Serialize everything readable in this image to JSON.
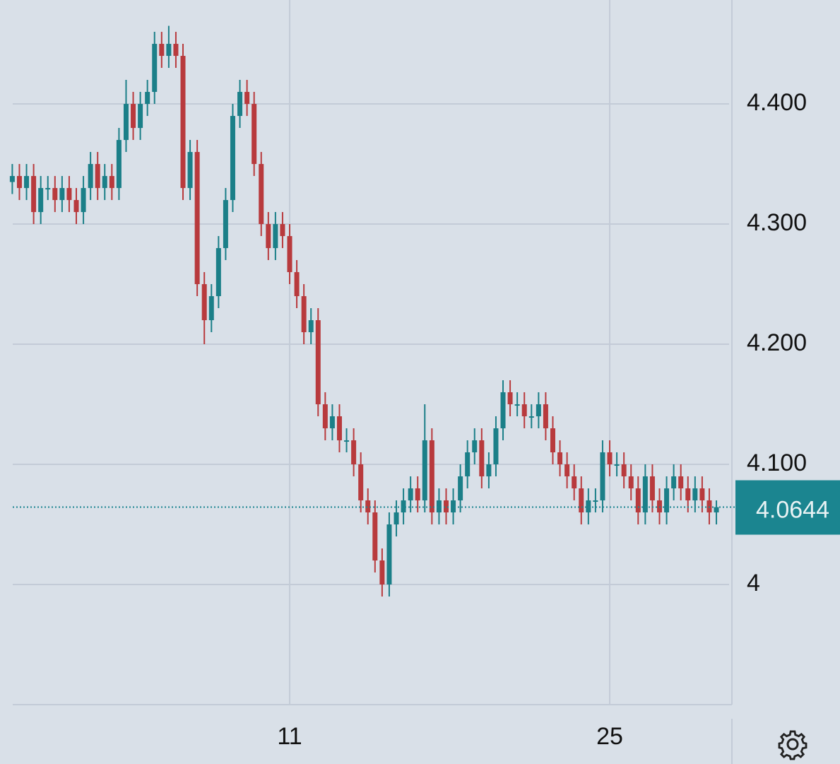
{
  "chart_data": {
    "type": "candlestick",
    "categories": [
      null,
      null,
      null,
      null,
      null,
      null,
      null,
      null,
      null,
      null,
      null,
      null,
      null,
      null,
      null,
      null,
      null,
      null,
      null,
      null,
      null,
      null,
      null,
      null,
      null,
      null,
      null,
      null,
      null,
      null,
      null,
      null,
      null,
      null,
      null,
      null,
      null,
      null,
      null,
      "11",
      null,
      null,
      null,
      null,
      null,
      null,
      null,
      null,
      null,
      null,
      null,
      null,
      null,
      null,
      null,
      null,
      null,
      null,
      null,
      null,
      null,
      null,
      null,
      null,
      null,
      null,
      null,
      null,
      null,
      null,
      null,
      null,
      null,
      null,
      null,
      null,
      null,
      null,
      null,
      null,
      null,
      null,
      null,
      null,
      "25",
      null,
      null,
      null,
      null,
      null,
      null,
      null,
      null,
      null,
      null,
      null,
      null,
      null,
      null,
      null
    ],
    "open": [
      4.335,
      4.34,
      4.33,
      4.34,
      4.31,
      4.33,
      4.33,
      4.32,
      4.33,
      4.32,
      4.31,
      4.33,
      4.35,
      4.33,
      4.34,
      4.33,
      4.37,
      4.4,
      4.38,
      4.4,
      4.41,
      4.45,
      4.44,
      4.45,
      4.44,
      4.33,
      4.36,
      4.25,
      4.22,
      4.24,
      4.28,
      4.32,
      4.39,
      4.41,
      4.4,
      4.35,
      4.3,
      4.28,
      4.3,
      4.29,
      4.26,
      4.24,
      4.21,
      4.22,
      4.15,
      4.13,
      4.14,
      4.12,
      4.12,
      4.1,
      4.07,
      4.06,
      4.02,
      4.0,
      4.05,
      4.06,
      4.07,
      4.08,
      4.07,
      4.12,
      4.06,
      4.07,
      4.06,
      4.07,
      4.09,
      4.11,
      4.12,
      4.09,
      4.1,
      4.13,
      4.16,
      4.15,
      4.15,
      4.14,
      4.14,
      4.15,
      4.13,
      4.11,
      4.1,
      4.09,
      4.08,
      4.06,
      4.07,
      4.07,
      4.11,
      4.1,
      4.1,
      4.09,
      4.08,
      4.06,
      4.09,
      4.07,
      4.06,
      4.08,
      4.09,
      4.08,
      4.07,
      4.08,
      4.07,
      4.06
    ],
    "high": [
      4.35,
      4.35,
      4.35,
      4.35,
      4.34,
      4.34,
      4.34,
      4.34,
      4.34,
      4.33,
      4.34,
      4.36,
      4.36,
      4.35,
      4.35,
      4.38,
      4.42,
      4.41,
      4.41,
      4.42,
      4.46,
      4.46,
      4.465,
      4.46,
      4.45,
      4.37,
      4.37,
      4.26,
      4.25,
      4.29,
      4.33,
      4.4,
      4.42,
      4.42,
      4.41,
      4.36,
      4.31,
      4.31,
      4.31,
      4.3,
      4.27,
      4.25,
      4.23,
      4.23,
      4.16,
      4.15,
      4.15,
      4.13,
      4.13,
      4.11,
      4.08,
      4.07,
      4.03,
      4.06,
      4.07,
      4.08,
      4.09,
      4.09,
      4.15,
      4.13,
      4.08,
      4.08,
      4.08,
      4.1,
      4.12,
      4.13,
      4.13,
      4.11,
      4.14,
      4.17,
      4.17,
      4.16,
      4.16,
      4.15,
      4.16,
      4.16,
      4.14,
      4.12,
      4.11,
      4.1,
      4.09,
      4.08,
      4.08,
      4.12,
      4.12,
      4.11,
      4.11,
      4.1,
      4.09,
      4.1,
      4.1,
      4.08,
      4.09,
      4.1,
      4.1,
      4.09,
      4.09,
      4.09,
      4.08,
      4.07
    ],
    "low": [
      4.325,
      4.32,
      4.32,
      4.3,
      4.3,
      4.32,
      4.31,
      4.31,
      4.31,
      4.3,
      4.3,
      4.32,
      4.32,
      4.32,
      4.32,
      4.32,
      4.36,
      4.37,
      4.37,
      4.39,
      4.4,
      4.43,
      4.43,
      4.43,
      4.32,
      4.32,
      4.24,
      4.2,
      4.21,
      4.23,
      4.27,
      4.31,
      4.38,
      4.39,
      4.34,
      4.29,
      4.27,
      4.27,
      4.28,
      4.25,
      4.23,
      4.2,
      4.2,
      4.14,
      4.12,
      4.12,
      4.11,
      4.11,
      4.09,
      4.06,
      4.05,
      4.01,
      3.99,
      3.99,
      4.04,
      4.05,
      4.06,
      4.06,
      4.06,
      4.05,
      4.05,
      4.05,
      4.05,
      4.06,
      4.08,
      4.1,
      4.08,
      4.08,
      4.09,
      4.12,
      4.14,
      4.14,
      4.13,
      4.13,
      4.13,
      4.12,
      4.1,
      4.09,
      4.08,
      4.07,
      4.05,
      4.05,
      4.06,
      4.06,
      4.09,
      4.09,
      4.08,
      4.07,
      4.05,
      4.05,
      4.06,
      4.05,
      4.05,
      4.07,
      4.07,
      4.06,
      4.06,
      4.06,
      4.05,
      4.05
    ],
    "close": [
      4.34,
      4.33,
      4.34,
      4.31,
      4.33,
      4.33,
      4.32,
      4.33,
      4.32,
      4.31,
      4.33,
      4.35,
      4.33,
      4.34,
      4.33,
      4.37,
      4.4,
      4.38,
      4.4,
      4.41,
      4.45,
      4.44,
      4.45,
      4.44,
      4.33,
      4.36,
      4.25,
      4.22,
      4.24,
      4.28,
      4.32,
      4.39,
      4.41,
      4.4,
      4.35,
      4.3,
      4.28,
      4.3,
      4.29,
      4.26,
      4.24,
      4.21,
      4.22,
      4.15,
      4.13,
      4.14,
      4.12,
      4.12,
      4.1,
      4.07,
      4.06,
      4.02,
      4.0,
      4.05,
      4.06,
      4.07,
      4.08,
      4.07,
      4.12,
      4.06,
      4.07,
      4.06,
      4.07,
      4.09,
      4.11,
      4.12,
      4.09,
      4.1,
      4.13,
      4.16,
      4.15,
      4.15,
      4.14,
      4.14,
      4.15,
      4.13,
      4.11,
      4.1,
      4.09,
      4.08,
      4.06,
      4.07,
      4.07,
      4.11,
      4.1,
      4.1,
      4.09,
      4.08,
      4.06,
      4.09,
      4.07,
      4.06,
      4.08,
      4.09,
      4.08,
      4.07,
      4.08,
      4.07,
      4.06,
      4.0644
    ],
    "up_color": "#1b7f88",
    "down_color": "#b83a3d",
    "last_price": 4.0644,
    "last_price_color": "#1b8590",
    "ylim": [
      3.9,
      4.4865
    ],
    "yticks": [
      4,
      {
        "value": 4.1,
        "label": "4.100"
      },
      {
        "value": 4.2,
        "label": "4.200"
      },
      {
        "value": 4.3,
        "label": "4.300"
      },
      {
        "value": 4.4,
        "label": "4.400"
      }
    ],
    "grid": true
  }
}
